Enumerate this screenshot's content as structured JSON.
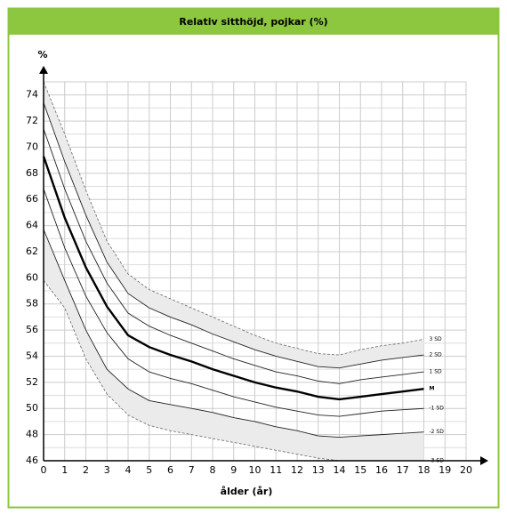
{
  "chart_data": {
    "type": "line",
    "title": "Relativ sitthöjd, pojkar (%)",
    "y_label": "%",
    "x_label": "ålder (år)",
    "x": [
      0,
      1,
      2,
      3,
      4,
      5,
      6,
      7,
      8,
      9,
      10,
      11,
      12,
      13,
      14,
      15,
      16,
      17,
      18
    ],
    "xlim": [
      0,
      20
    ],
    "xticks": [
      0,
      1,
      2,
      3,
      4,
      5,
      6,
      7,
      8,
      9,
      10,
      11,
      12,
      13,
      14,
      15,
      16,
      17,
      18,
      19,
      20
    ],
    "ylim": [
      46,
      75
    ],
    "yticks": [
      46,
      48,
      50,
      52,
      54,
      56,
      58,
      60,
      62,
      64,
      66,
      68,
      70,
      72,
      74
    ],
    "grid": true,
    "series": [
      {
        "name": "3 SD",
        "color": "#666666",
        "values": [
          75.0,
          71.0,
          66.7,
          62.8,
          60.3,
          59.1,
          58.4,
          57.7,
          57.0,
          56.3,
          55.6,
          55.0,
          54.6,
          54.2,
          54.1,
          54.5,
          54.8,
          55.0,
          55.3
        ]
      },
      {
        "name": "2 SD",
        "color": "#222222",
        "values": [
          73.4,
          68.9,
          64.8,
          61.2,
          58.8,
          57.7,
          57.0,
          56.4,
          55.7,
          55.1,
          54.5,
          54.0,
          53.6,
          53.2,
          53.1,
          53.4,
          53.7,
          53.9,
          54.1
        ]
      },
      {
        "name": "1 SD",
        "color": "#222222",
        "values": [
          71.4,
          66.8,
          62.8,
          59.6,
          57.3,
          56.3,
          55.6,
          55.0,
          54.4,
          53.8,
          53.3,
          52.8,
          52.5,
          52.1,
          51.9,
          52.2,
          52.4,
          52.6,
          52.8
        ]
      },
      {
        "name": "M",
        "color": "#000000",
        "values": [
          69.3,
          64.6,
          60.8,
          57.8,
          55.6,
          54.7,
          54.1,
          53.6,
          53.0,
          52.5,
          52.0,
          51.6,
          51.3,
          50.9,
          50.7,
          50.9,
          51.1,
          51.3,
          51.5
        ]
      },
      {
        "name": "-1 SD",
        "color": "#222222",
        "values": [
          66.8,
          62.3,
          58.6,
          55.8,
          53.8,
          52.8,
          52.3,
          51.9,
          51.4,
          50.9,
          50.5,
          50.1,
          49.8,
          49.5,
          49.4,
          49.6,
          49.8,
          49.9,
          50.0
        ]
      },
      {
        "name": "-2 SD",
        "color": "#222222",
        "values": [
          63.7,
          59.8,
          56.0,
          53.0,
          51.5,
          50.6,
          50.3,
          50.0,
          49.7,
          49.3,
          49.0,
          48.6,
          48.3,
          47.9,
          47.8,
          47.9,
          48.0,
          48.1,
          48.2
        ]
      },
      {
        "name": "-3 SD",
        "color": "#666666",
        "values": [
          59.8,
          57.7,
          53.8,
          51.1,
          49.5,
          48.7,
          48.3,
          48.0,
          47.7,
          47.4,
          47.1,
          46.8,
          46.5,
          46.2,
          46.0,
          46.0,
          46.0,
          46.0,
          46.0
        ]
      }
    ]
  }
}
